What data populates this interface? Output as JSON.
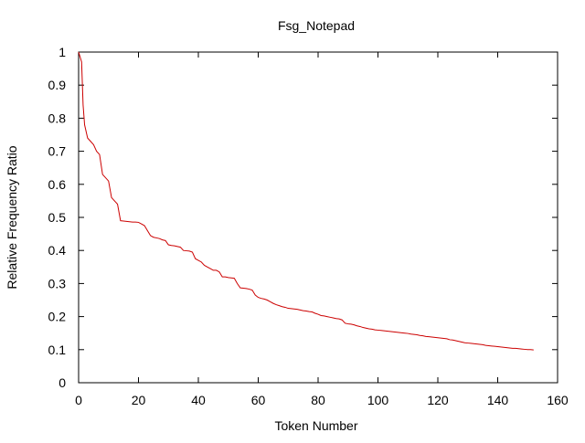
{
  "chart_data": {
    "type": "line",
    "title": "Fsg_Notepad",
    "xlabel": "Token Number",
    "ylabel": "Relative Frequency Ratio",
    "xlim": [
      0,
      160
    ],
    "ylim": [
      0,
      1
    ],
    "xticks": [
      0,
      20,
      40,
      60,
      80,
      100,
      120,
      140,
      160
    ],
    "yticks": [
      0,
      0.1,
      0.2,
      0.3,
      0.4,
      0.5,
      0.6,
      0.7,
      0.8,
      0.9,
      1
    ],
    "xtick_labels": [
      "0",
      "20",
      "40",
      "60",
      "80",
      "100",
      "120",
      "140",
      "160"
    ],
    "ytick_labels": [
      "0",
      "0.1",
      "0.2",
      "0.3",
      "0.4",
      "0.5",
      "0.6",
      "0.7",
      "0.8",
      "0.9",
      "1"
    ],
    "grid": false,
    "legend": "none",
    "series": [
      {
        "color": "#cc0000",
        "points": [
          [
            0,
            1.0
          ],
          [
            1,
            0.97
          ],
          [
            1.5,
            0.84
          ],
          [
            2,
            0.78
          ],
          [
            3,
            0.74
          ],
          [
            4,
            0.73
          ],
          [
            5,
            0.72
          ],
          [
            6,
            0.7
          ],
          [
            7,
            0.69
          ],
          [
            8,
            0.63
          ],
          [
            9,
            0.62
          ],
          [
            10,
            0.61
          ],
          [
            11,
            0.56
          ],
          [
            12,
            0.55
          ],
          [
            13,
            0.54
          ],
          [
            14,
            0.49
          ],
          [
            15,
            0.489
          ],
          [
            16,
            0.488
          ],
          [
            17,
            0.487
          ],
          [
            18,
            0.486
          ],
          [
            19,
            0.486
          ],
          [
            20,
            0.485
          ],
          [
            21,
            0.48
          ],
          [
            22,
            0.475
          ],
          [
            23,
            0.46
          ],
          [
            24,
            0.445
          ],
          [
            25,
            0.44
          ],
          [
            26,
            0.438
          ],
          [
            27,
            0.436
          ],
          [
            28,
            0.432
          ],
          [
            29,
            0.43
          ],
          [
            30,
            0.417
          ],
          [
            31,
            0.415
          ],
          [
            32,
            0.414
          ],
          [
            33,
            0.412
          ],
          [
            34,
            0.41
          ],
          [
            35,
            0.4
          ],
          [
            36,
            0.399
          ],
          [
            37,
            0.398
          ],
          [
            38,
            0.395
          ],
          [
            39,
            0.375
          ],
          [
            40,
            0.37
          ],
          [
            41,
            0.365
          ],
          [
            42,
            0.355
          ],
          [
            43,
            0.35
          ],
          [
            44,
            0.345
          ],
          [
            45,
            0.34
          ],
          [
            46,
            0.34
          ],
          [
            47,
            0.335
          ],
          [
            48,
            0.32
          ],
          [
            49,
            0.32
          ],
          [
            50,
            0.318
          ],
          [
            51,
            0.317
          ],
          [
            52,
            0.316
          ],
          [
            53,
            0.3
          ],
          [
            54,
            0.287
          ],
          [
            55,
            0.286
          ],
          [
            56,
            0.285
          ],
          [
            57,
            0.283
          ],
          [
            58,
            0.28
          ],
          [
            59,
            0.265
          ],
          [
            60,
            0.258
          ],
          [
            61,
            0.255
          ],
          [
            62,
            0.253
          ],
          [
            63,
            0.25
          ],
          [
            64,
            0.245
          ],
          [
            65,
            0.24
          ],
          [
            66,
            0.236
          ],
          [
            67,
            0.233
          ],
          [
            68,
            0.23
          ],
          [
            69,
            0.228
          ],
          [
            70,
            0.225
          ],
          [
            71,
            0.224
          ],
          [
            72,
            0.223
          ],
          [
            73,
            0.222
          ],
          [
            74,
            0.22
          ],
          [
            75,
            0.218
          ],
          [
            76,
            0.217
          ],
          [
            77,
            0.215
          ],
          [
            78,
            0.214
          ],
          [
            79,
            0.21
          ],
          [
            80,
            0.207
          ],
          [
            81,
            0.203
          ],
          [
            82,
            0.202
          ],
          [
            83,
            0.2
          ],
          [
            84,
            0.198
          ],
          [
            85,
            0.196
          ],
          [
            86,
            0.194
          ],
          [
            87,
            0.193
          ],
          [
            88,
            0.19
          ],
          [
            89,
            0.18
          ],
          [
            90,
            0.178
          ],
          [
            91,
            0.177
          ],
          [
            92,
            0.175
          ],
          [
            93,
            0.172
          ],
          [
            94,
            0.17
          ],
          [
            95,
            0.167
          ],
          [
            96,
            0.165
          ],
          [
            97,
            0.163
          ],
          [
            98,
            0.162
          ],
          [
            99,
            0.16
          ],
          [
            100,
            0.159
          ],
          [
            101,
            0.158
          ],
          [
            102,
            0.157
          ],
          [
            103,
            0.156
          ],
          [
            104,
            0.155
          ],
          [
            105,
            0.154
          ],
          [
            106,
            0.153
          ],
          [
            107,
            0.152
          ],
          [
            108,
            0.151
          ],
          [
            109,
            0.15
          ],
          [
            110,
            0.149
          ],
          [
            111,
            0.147
          ],
          [
            112,
            0.146
          ],
          [
            113,
            0.145
          ],
          [
            114,
            0.143
          ],
          [
            115,
            0.142
          ],
          [
            116,
            0.14
          ],
          [
            117,
            0.139
          ],
          [
            118,
            0.138
          ],
          [
            119,
            0.137
          ],
          [
            120,
            0.136
          ],
          [
            121,
            0.135
          ],
          [
            122,
            0.134
          ],
          [
            123,
            0.133
          ],
          [
            124,
            0.13
          ],
          [
            125,
            0.129
          ],
          [
            126,
            0.127
          ],
          [
            127,
            0.125
          ],
          [
            128,
            0.123
          ],
          [
            129,
            0.121
          ],
          [
            130,
            0.12
          ],
          [
            131,
            0.119
          ],
          [
            132,
            0.118
          ],
          [
            133,
            0.117
          ],
          [
            134,
            0.116
          ],
          [
            135,
            0.115
          ],
          [
            136,
            0.113
          ],
          [
            137,
            0.112
          ],
          [
            138,
            0.111
          ],
          [
            139,
            0.11
          ],
          [
            140,
            0.109
          ],
          [
            141,
            0.108
          ],
          [
            142,
            0.107
          ],
          [
            143,
            0.106
          ],
          [
            144,
            0.105
          ],
          [
            145,
            0.104
          ],
          [
            146,
            0.104
          ],
          [
            147,
            0.103
          ],
          [
            148,
            0.102
          ],
          [
            149,
            0.101
          ],
          [
            150,
            0.1
          ],
          [
            151,
            0.1
          ],
          [
            152,
            0.099
          ]
        ]
      }
    ]
  }
}
